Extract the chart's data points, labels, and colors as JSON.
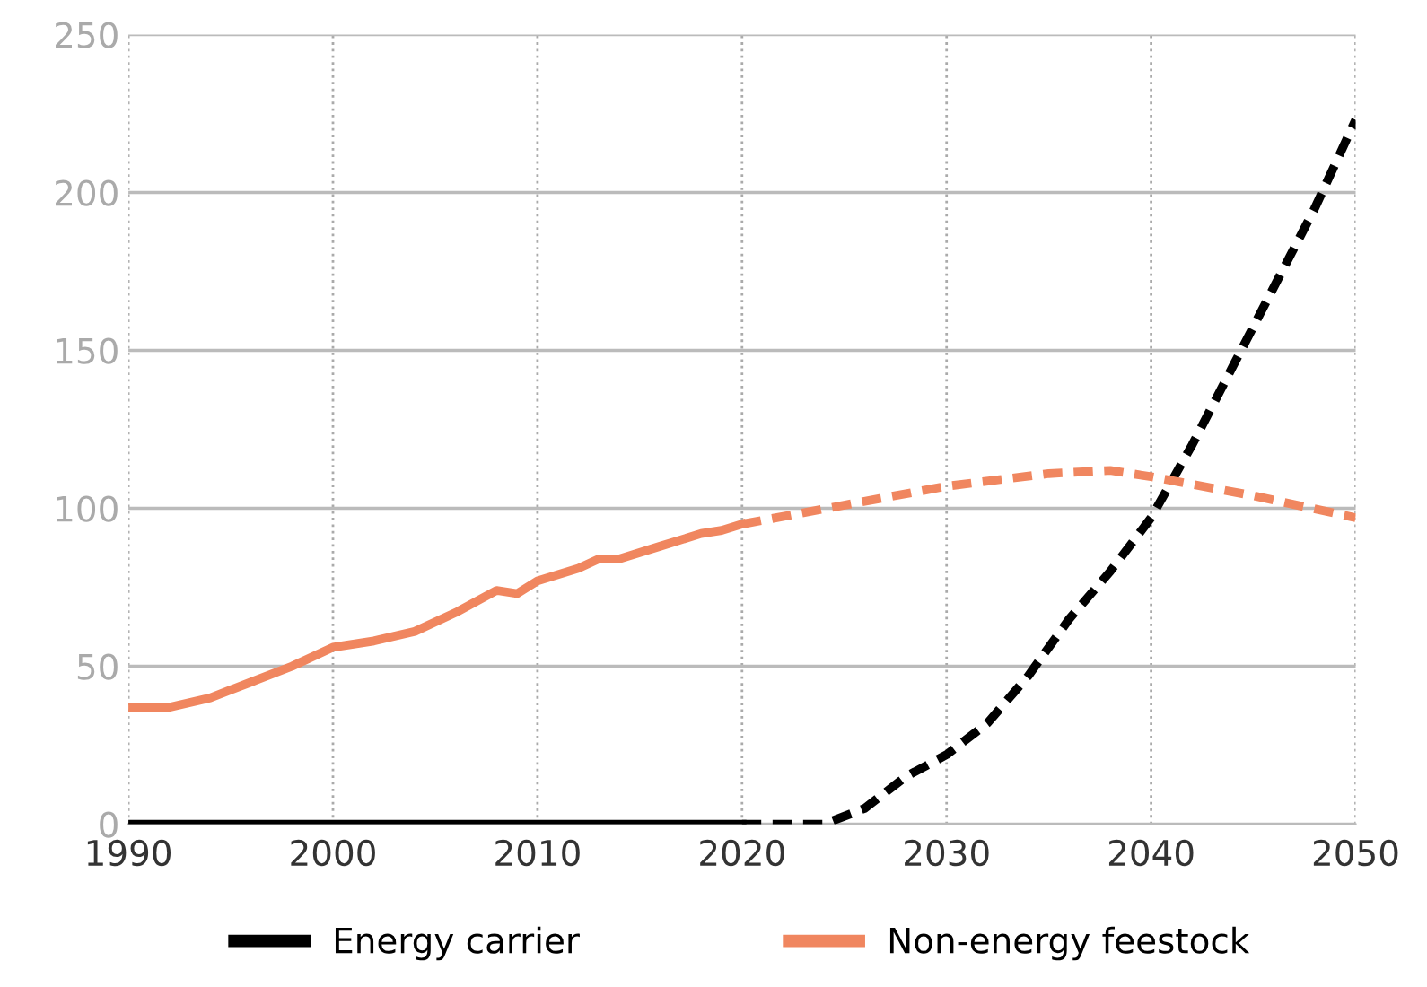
{
  "chart_data": {
    "type": "line",
    "xlim": [
      1990,
      2050
    ],
    "xticks": [
      1990,
      2000,
      2010,
      2020,
      2030,
      2040,
      2050
    ],
    "ylim": [
      0,
      250
    ],
    "yticks": [
      0,
      50,
      100,
      150,
      200,
      250
    ],
    "grid": true,
    "legend": "bottom",
    "marker": "none",
    "series": [
      {
        "name": "Energy carrier",
        "color": "#000000",
        "line_style": "solid",
        "x": [
          1990,
          2000,
          2010,
          2020
        ],
        "values": [
          0,
          0,
          0,
          0
        ]
      },
      {
        "color": "#000000",
        "line_style": "dashed",
        "x": [
          2020,
          2024,
          2026,
          2028,
          2030,
          2032,
          2034,
          2036,
          2038,
          2040,
          2042,
          2044,
          2046,
          2048,
          2050
        ],
        "values": [
          0,
          0,
          5,
          15,
          22,
          32,
          47,
          65,
          80,
          97,
          120,
          145,
          170,
          195,
          223
        ]
      },
      {
        "name": "Non-energy feestock",
        "color": "#f0865f",
        "line_style": "solid",
        "x": [
          1990,
          1992,
          1994,
          1996,
          1998,
          2000,
          2002,
          2004,
          2006,
          2008,
          2009,
          2010,
          2012,
          2013,
          2014,
          2016,
          2018,
          2019,
          2020
        ],
        "values": [
          37,
          37,
          40,
          45,
          50,
          56,
          58,
          61,
          67,
          74,
          73,
          77,
          81,
          84,
          84,
          88,
          92,
          93,
          95
        ]
      },
      {
        "color": "#f0865f",
        "line_style": "dashed",
        "x": [
          2020,
          2025,
          2030,
          2035,
          2038,
          2040,
          2045,
          2050
        ],
        "values": [
          95,
          101,
          107,
          111,
          112,
          110,
          104,
          97
        ]
      }
    ]
  }
}
